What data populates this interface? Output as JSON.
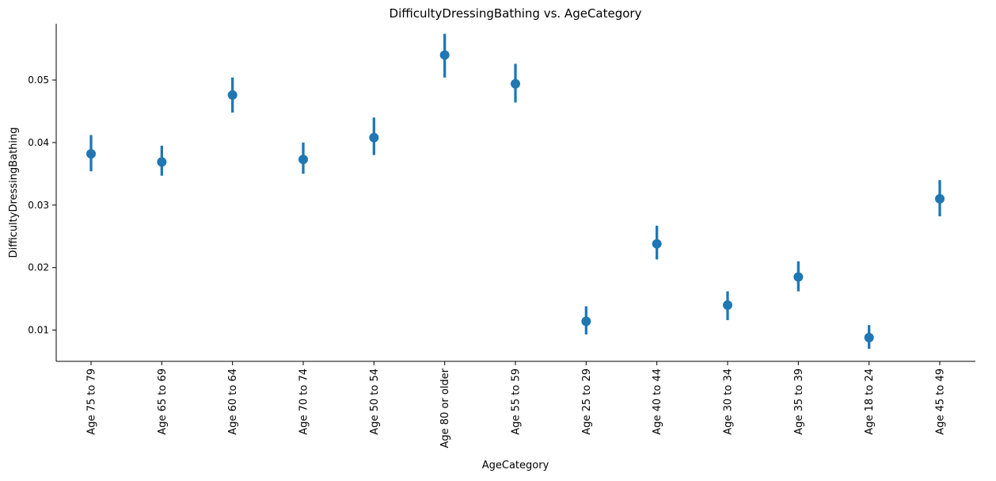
{
  "chart_data": {
    "type": "scatter",
    "subtype": "pointplot-with-error-bars",
    "title": "DifficultyDressingBathing vs. AgeCategory",
    "xlabel": "AgeCategory",
    "ylabel": "DifficultyDressingBathing",
    "ylim": [
      0.005,
      0.059
    ],
    "yticks": [
      0.01,
      0.02,
      0.03,
      0.04,
      0.05
    ],
    "ytick_labels": [
      "0.01",
      "0.02",
      "0.03",
      "0.04",
      "0.05"
    ],
    "grid": false,
    "legend": "none",
    "color": "#1f77b4",
    "categories": [
      "Age 75 to 79",
      "Age 65 to 69",
      "Age 60 to 64",
      "Age 70 to 74",
      "Age 50 to 54",
      "Age 80 or older",
      "Age 55 to 59",
      "Age 25 to 29",
      "Age 40 to 44",
      "Age 30 to 34",
      "Age 35 to 39",
      "Age 18 to 24",
      "Age 45 to 49"
    ],
    "values": [
      0.0382,
      0.0369,
      0.0476,
      0.0373,
      0.0408,
      0.054,
      0.0494,
      0.0114,
      0.0238,
      0.014,
      0.0185,
      0.0088,
      0.031
    ],
    "ci_low": [
      0.0354,
      0.0347,
      0.0448,
      0.035,
      0.038,
      0.0504,
      0.0464,
      0.0093,
      0.0213,
      0.0116,
      0.0162,
      0.007,
      0.0282
    ],
    "ci_high": [
      0.0412,
      0.0395,
      0.0504,
      0.04,
      0.044,
      0.0574,
      0.0526,
      0.0138,
      0.0267,
      0.0162,
      0.021,
      0.0108,
      0.034
    ]
  }
}
